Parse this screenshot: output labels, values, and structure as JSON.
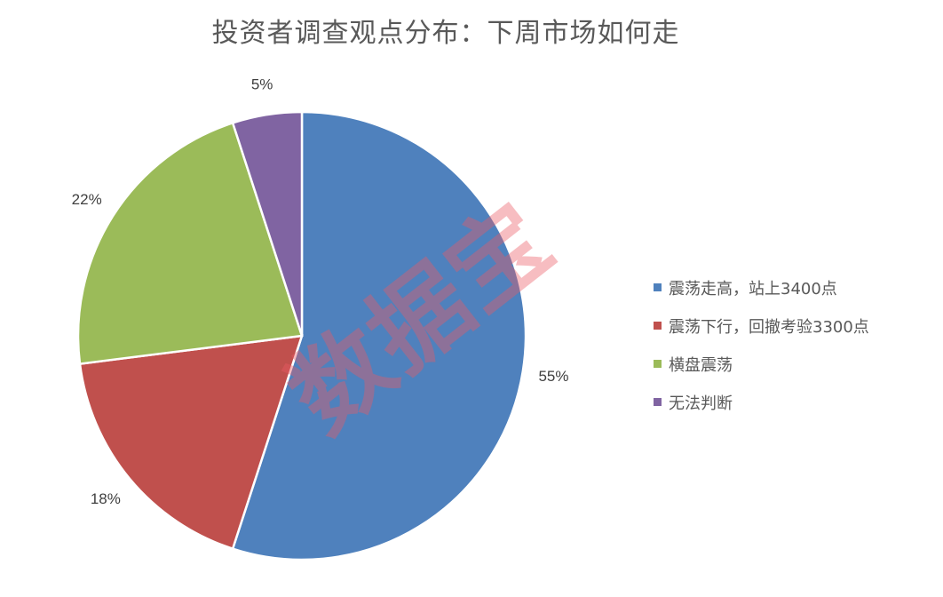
{
  "chart_data": {
    "type": "pie",
    "title": "投资者调查观点分布：下周市场如何走",
    "legend_position": "right",
    "categories": [
      "震荡走高，站上3400点",
      "震荡下行，回撤考验3300点",
      "横盘震荡",
      "无法判断"
    ],
    "values": [
      55,
      18,
      22,
      5
    ],
    "data_labels": [
      "55%",
      "18%",
      "22%",
      "5%"
    ],
    "colors": [
      "#4F81BD",
      "#C0504D",
      "#9BBB59",
      "#8064A2"
    ],
    "start_angle": "top, clockwise"
  },
  "watermark": "数据宝"
}
